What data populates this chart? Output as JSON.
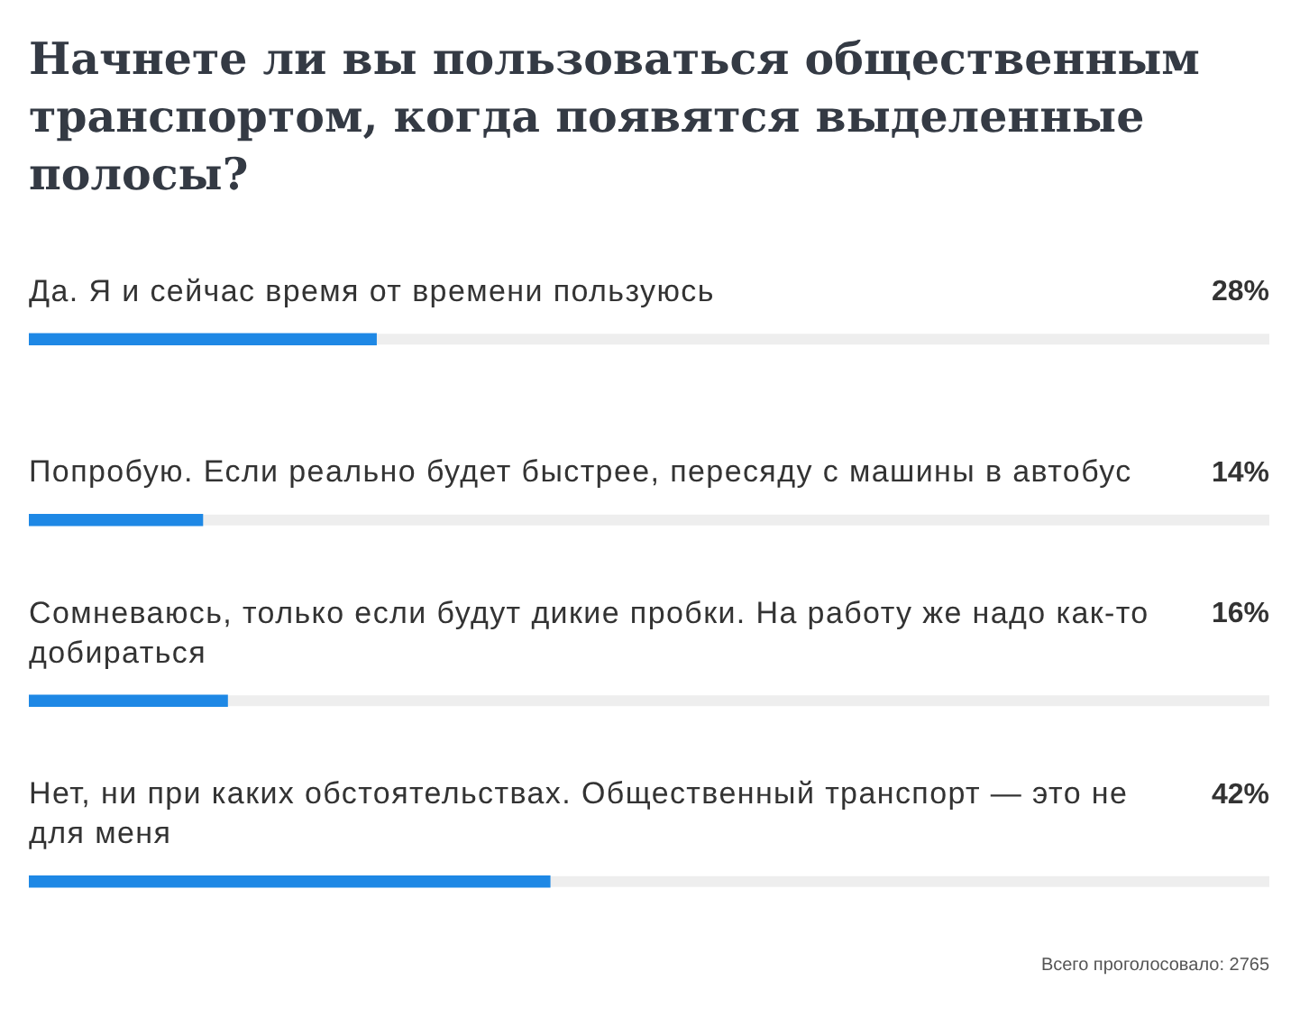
{
  "chart_data": {
    "type": "bar",
    "title": "Начнете ли вы пользоваться общественным транспортом, когда появятся выделенные полосы?",
    "orientation": "horizontal",
    "categories": [
      "Да. Я и сейчас время от времени пользуюсь",
      "Попробую. Если реально будет быстрее, пересяду с машины в автобус",
      "Сомневаюсь, только если будут дикие пробки. На работу же надо как-то добираться",
      "Нет, ни при каких обстоятельствах. Общественный транспорт — это не для меня"
    ],
    "values": [
      28,
      14,
      16,
      42
    ],
    "color": "#1e88e5",
    "value_labels": [
      "28%",
      "14%",
      "16%",
      "42%"
    ],
    "xlim": [
      0,
      100
    ],
    "tick_labels": "y",
    "annotations": [
      "Всего проголосовало: 2765"
    ]
  }
}
